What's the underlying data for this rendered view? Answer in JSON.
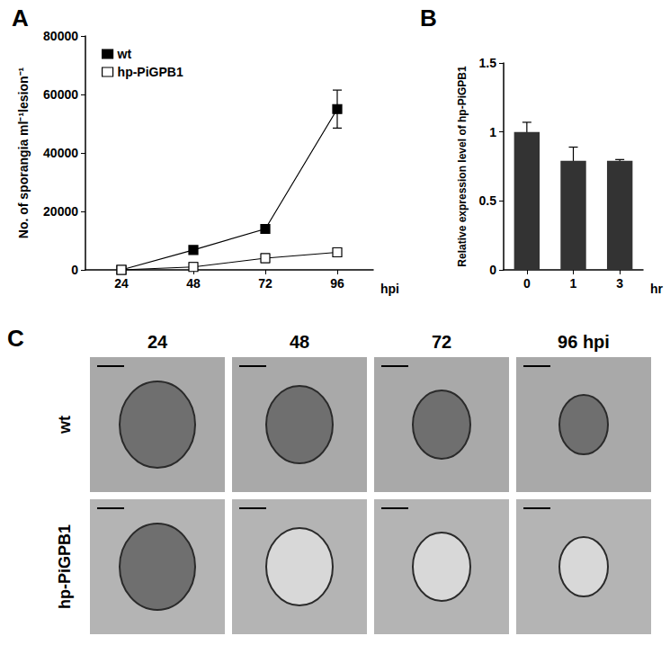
{
  "chart_data": [
    {
      "type": "line",
      "title": "A",
      "categories": [
        "24",
        "48",
        "72",
        "96"
      ],
      "x_label": "hpi",
      "y_label": "No. of sporangia ml⁻¹lesion⁻¹",
      "ylim": [
        0,
        80000
      ],
      "yticks": [
        0,
        20000,
        40000,
        60000,
        80000
      ],
      "legend": "upper left",
      "grid": false,
      "series": [
        {
          "name": "wt",
          "color": "#000000",
          "marker": "square",
          "values": [
            0,
            6800,
            14000,
            55000
          ],
          "errors": [
            0,
            500,
            800,
            6500
          ]
        },
        {
          "name": "hp-PiGPB1",
          "color": "#000000",
          "marker": "open_square",
          "values": [
            0,
            1000,
            4000,
            6000
          ],
          "errors": [
            0,
            1500,
            1500,
            1500
          ]
        }
      ]
    },
    {
      "type": "bar",
      "title": "B",
      "categories": [
        "0",
        "1",
        "3"
      ],
      "x_label": "hr",
      "y_label": "Relative expression level of hp-PiGPB1",
      "ylim": [
        0,
        1.5
      ],
      "yticks": [
        0,
        0.5,
        1,
        1.5
      ],
      "color": "#333333",
      "grid": false,
      "values": [
        1.0,
        0.79,
        0.79
      ],
      "errors": [
        0.07,
        0.1,
        0.01
      ]
    }
  ],
  "panel_c": {
    "label": "C",
    "columns": [
      "24",
      "48",
      "72",
      "96 hpi"
    ],
    "rows": [
      "wt",
      "hp-PiGPB1"
    ]
  }
}
